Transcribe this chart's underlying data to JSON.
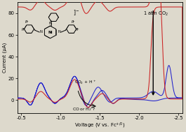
{
  "bg_color": "#ddd9cc",
  "blue_color": "#2222cc",
  "red_color": "#cc2222",
  "ylabel": "Current (μA)",
  "xlabel": "Voltage (V vs. Fc",
  "xticks": [
    -0.5,
    -1.0,
    -1.5,
    -2.0,
    -2.5
  ],
  "yticks": [
    0,
    20,
    40,
    60,
    80
  ],
  "xlim": [
    -0.45,
    -2.55
  ],
  "ylim": [
    -12,
    90
  ]
}
